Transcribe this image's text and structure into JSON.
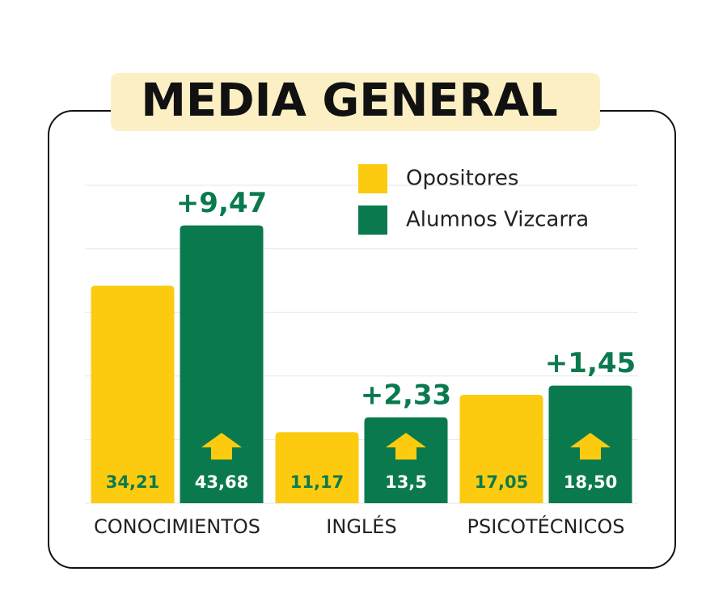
{
  "chart_data": {
    "type": "bar",
    "title": "MEDIA GENERAL",
    "categories": [
      "CONOCIMIENTOS",
      "INGLÉS",
      "PSICOTÉCNICOS"
    ],
    "series": [
      {
        "name": "Opositores",
        "color": "#fccb10",
        "values": [
          34.21,
          11.17,
          17.05
        ],
        "value_labels": [
          "34,21",
          "11,17",
          "17,05"
        ]
      },
      {
        "name": "Alumnos Vizcarra",
        "color": "#0a7a4e",
        "values": [
          43.68,
          13.5,
          18.5
        ],
        "value_labels": [
          "43,68",
          "13,5",
          "18,50"
        ]
      }
    ],
    "differences": [
      9.47,
      2.33,
      1.45
    ],
    "difference_labels": [
      "+9,47",
      "+2,33",
      "+1,45"
    ],
    "ylim": [
      0,
      50
    ],
    "yticks": [
      0,
      10,
      20,
      30,
      40,
      50
    ],
    "grid": true
  }
}
